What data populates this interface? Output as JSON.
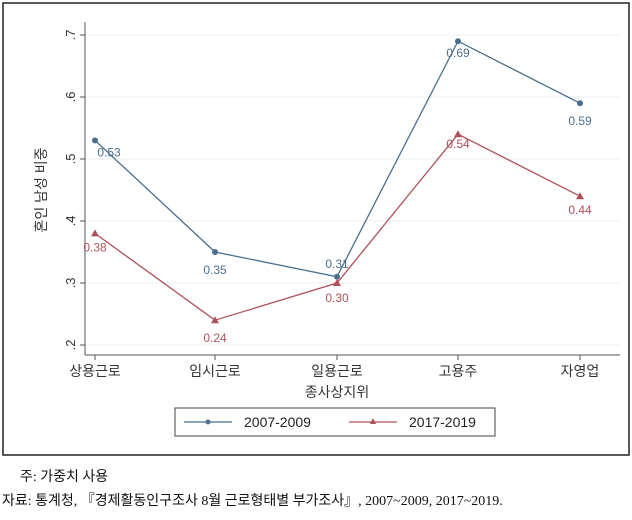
{
  "chart_data": {
    "type": "line",
    "title": "",
    "xlabel": "종사상지위",
    "ylabel": "혼인 남성 비중",
    "categories": [
      "상용근로",
      "임시근로",
      "일용근로",
      "고용주",
      "자영업"
    ],
    "ylim": [
      0.2,
      0.7
    ],
    "yticks": [
      ".2",
      ".3",
      ".4",
      ".5",
      ".6",
      ".7"
    ],
    "ytick_values": [
      0.2,
      0.3,
      0.4,
      0.5,
      0.6,
      0.7
    ],
    "grid": true,
    "legend": "bottom",
    "series": [
      {
        "name": "2007-2009",
        "values": [
          0.53,
          0.35,
          0.31,
          0.69,
          0.59
        ],
        "labels": [
          "0.53",
          "0.35",
          "0.31",
          "0.69",
          "0.59"
        ],
        "color": "#4a6f8f",
        "marker": "circle"
      },
      {
        "name": "2017-2019",
        "values": [
          0.38,
          0.24,
          0.3,
          0.54,
          0.44
        ],
        "labels": [
          "0.38",
          "0.24",
          "0.30",
          "0.54",
          "0.44"
        ],
        "color": "#b0505a",
        "marker": "triangle"
      }
    ]
  },
  "notes": {
    "note": "주: 가중치 사용",
    "source": "자료: 통계청, 『경제활동인구조사 8월 근로형태별 부가조사』, 2007~2009, 2017~2019."
  }
}
